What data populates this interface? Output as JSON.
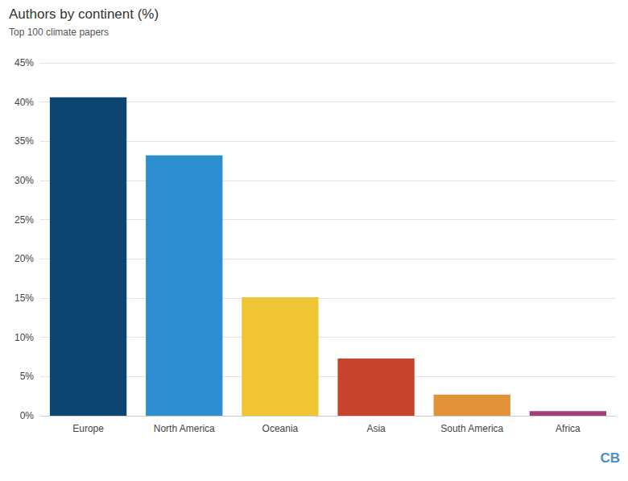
{
  "chart_data": {
    "type": "bar",
    "title": "Authors by continent (%)",
    "subtitle": "Top 100 climate papers",
    "categories": [
      "Europe",
      "North America",
      "Oceania",
      "Asia",
      "South America",
      "Africa"
    ],
    "values": [
      40.6,
      33.2,
      15.1,
      7.3,
      2.7,
      0.6
    ],
    "colors": [
      "#0b4570",
      "#2e8fd0",
      "#f0c535",
      "#c8432b",
      "#e2933a",
      "#a3407a"
    ],
    "ylim": [
      0,
      45
    ],
    "yticks": [
      {
        "value": 0,
        "label": "0%"
      },
      {
        "value": 5,
        "label": "5%"
      },
      {
        "value": 10,
        "label": "10%"
      },
      {
        "value": 15,
        "label": "15%"
      },
      {
        "value": 20,
        "label": "20%"
      },
      {
        "value": 25,
        "label": "25%"
      },
      {
        "value": 30,
        "label": "30%"
      },
      {
        "value": 35,
        "label": "35%"
      },
      {
        "value": 40,
        "label": "40%"
      },
      {
        "value": 45,
        "label": "45%"
      }
    ],
    "grid": true,
    "annotations": [
      "CB"
    ]
  }
}
